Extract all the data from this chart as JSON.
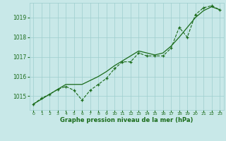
{
  "hours": [
    0,
    1,
    2,
    3,
    4,
    5,
    6,
    7,
    8,
    9,
    10,
    11,
    12,
    13,
    14,
    15,
    16,
    17,
    18,
    19,
    20,
    21,
    22,
    23
  ],
  "pressure_main": [
    1014.6,
    1014.9,
    1015.1,
    1015.35,
    1015.5,
    1015.3,
    1014.8,
    1015.3,
    1015.6,
    1015.9,
    1016.4,
    1016.75,
    1016.75,
    1017.2,
    1017.05,
    1017.05,
    1017.05,
    1017.45,
    1018.5,
    1018.0,
    1019.15,
    1019.5,
    1019.6,
    1019.4
  ],
  "pressure_trend": [
    1014.6,
    1014.85,
    1015.1,
    1015.35,
    1015.6,
    1015.6,
    1015.6,
    1015.8,
    1016.0,
    1016.25,
    1016.55,
    1016.8,
    1017.05,
    1017.3,
    1017.2,
    1017.1,
    1017.2,
    1017.55,
    1018.0,
    1018.5,
    1019.0,
    1019.35,
    1019.55,
    1019.4
  ],
  "line_color": "#1a6b1a",
  "bg_color": "#c8e8e8",
  "grid_color": "#9ecece",
  "xlabel": "Graphe pression niveau de la mer (hPa)",
  "ylim": [
    1014.3,
    1019.75
  ],
  "yticks": [
    1015,
    1016,
    1017,
    1018,
    1019
  ],
  "xticks": [
    0,
    1,
    2,
    3,
    4,
    5,
    6,
    7,
    8,
    9,
    10,
    11,
    12,
    13,
    14,
    15,
    16,
    17,
    18,
    19,
    20,
    21,
    22,
    23
  ]
}
